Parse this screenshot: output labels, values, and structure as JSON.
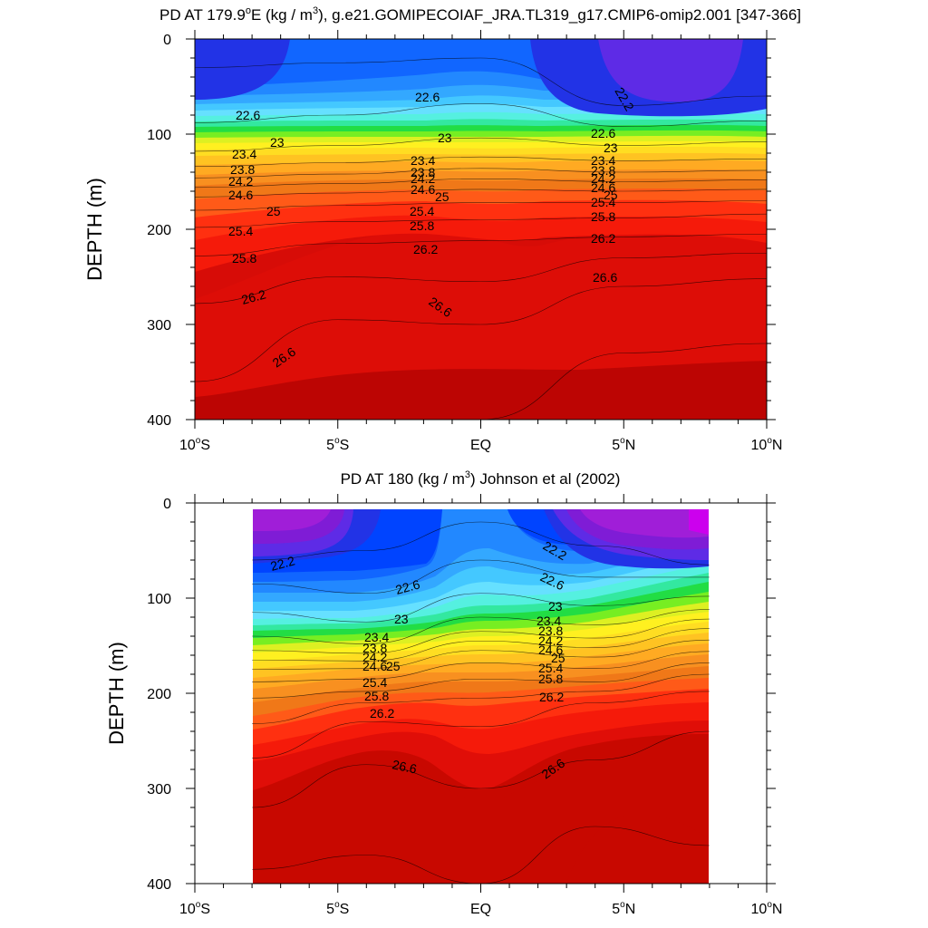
{
  "chart_data": [
    {
      "type": "contour",
      "title_pre": "PD AT 179.9",
      "title_deg": "o",
      "title_mid": "E (kg / m",
      "title_sup": "3",
      "title_post": "), g.e21.GOMIPECOIAF_JRA.TL319_g17.CMIP6-omip2.001 [347-366]",
      "ylabel": "DEPTH (m)",
      "xlim": [
        -10,
        10
      ],
      "ylim": [
        400,
        0
      ],
      "x_ticks": [
        {
          "value": -10,
          "main": "10",
          "deg": "o",
          "hem": "S"
        },
        {
          "value": -5,
          "main": "5",
          "deg": "o",
          "hem": "S"
        },
        {
          "value": 0,
          "main": "EQ",
          "deg": "",
          "hem": ""
        },
        {
          "value": 5,
          "main": "5",
          "deg": "o",
          "hem": "N"
        },
        {
          "value": 10,
          "main": "10",
          "deg": "o",
          "hem": "N"
        }
      ],
      "y_ticks": [
        {
          "value": 0,
          "label": "0"
        },
        {
          "value": 100,
          "label": "100"
        },
        {
          "value": 200,
          "label": "200"
        },
        {
          "value": 300,
          "label": "300"
        },
        {
          "value": 400,
          "label": "400"
        }
      ],
      "data_x_range": [
        -10,
        10
      ],
      "levels": [
        21.8,
        22.0,
        22.2,
        22.4,
        22.6,
        22.8,
        23.0,
        23.2,
        23.4,
        23.6,
        23.8,
        24.0,
        24.2,
        24.4,
        24.6,
        24.8,
        25.0,
        25.2,
        25.4,
        25.6,
        25.8,
        26.0,
        26.2,
        26.4,
        26.6,
        26.8
      ],
      "colors": [
        "#7F1CD6",
        "#5E2BE6",
        "#2233E6",
        "#0044FF",
        "#1166FF",
        "#2288FF",
        "#33A8FF",
        "#44C8FF",
        "#66E0FF",
        "#55F0E0",
        "#33E8A0",
        "#22DD44",
        "#77EE22",
        "#DDF022",
        "#FFF020",
        "#FFDD22",
        "#FFC322",
        "#FFAA22",
        "#F89020",
        "#F07818",
        "#FF5A18",
        "#FF3010",
        "#F51A0A",
        "#E00E08",
        "#C80800",
        "#A00000"
      ],
      "depth_profile": [
        {
          "x": -10,
          "isopycnals": [
            [
              22.2,
              30
            ],
            [
              22.6,
              88
            ],
            [
              23.0,
              118
            ],
            [
              23.4,
              134
            ],
            [
              23.8,
              146
            ],
            [
              24.2,
              156
            ],
            [
              24.6,
              166
            ],
            [
              25.0,
              180
            ],
            [
              25.4,
              198
            ],
            [
              25.8,
              228
            ],
            [
              26.2,
              278
            ],
            [
              26.6,
              360
            ],
            [
              26.8,
              420
            ]
          ]
        },
        {
          "x": -5,
          "isopycnals": [
            [
              22.2,
              25
            ],
            [
              22.6,
              80
            ],
            [
              23.0,
              112
            ],
            [
              23.4,
              130
            ],
            [
              23.8,
              142
            ],
            [
              24.2,
              152
            ],
            [
              24.6,
              162
            ],
            [
              25.0,
              175
            ],
            [
              25.4,
              192
            ],
            [
              25.8,
              215
            ],
            [
              26.2,
              250
            ],
            [
              26.6,
              295
            ],
            [
              26.8,
              400
            ]
          ]
        },
        {
          "x": 0,
          "isopycnals": [
            [
              22.2,
              20
            ],
            [
              22.6,
              68
            ],
            [
              23.0,
              104
            ],
            [
              23.4,
              124
            ],
            [
              23.8,
              136
            ],
            [
              24.2,
              147
            ],
            [
              24.6,
              158
            ],
            [
              25.0,
              172
            ],
            [
              25.4,
              190
            ],
            [
              25.8,
              212
            ],
            [
              26.2,
              255
            ],
            [
              26.6,
              300
            ],
            [
              26.8,
              400
            ]
          ]
        },
        {
          "x": 5,
          "isopycnals": [
            [
              22.2,
              70
            ],
            [
              22.6,
              92
            ],
            [
              23.0,
              112
            ],
            [
              23.4,
              128
            ],
            [
              23.8,
              140
            ],
            [
              24.2,
              150
            ],
            [
              24.6,
              160
            ],
            [
              25.0,
              172
            ],
            [
              25.4,
              188
            ],
            [
              25.8,
              208
            ],
            [
              26.2,
              230
            ],
            [
              26.6,
              260
            ],
            [
              26.8,
              330
            ]
          ]
        },
        {
          "x": 10,
          "isopycnals": [
            [
              22.2,
              60
            ],
            [
              22.6,
              86
            ],
            [
              23.0,
              108
            ],
            [
              23.4,
              126
            ],
            [
              23.8,
              138
            ],
            [
              24.2,
              148
            ],
            [
              24.6,
              158
            ],
            [
              25.0,
              170
            ],
            [
              25.4,
              184
            ],
            [
              25.8,
              205
            ],
            [
              26.2,
              225
            ],
            [
              26.6,
              252
            ],
            [
              26.8,
              320
            ]
          ]
        }
      ],
      "contour_labels": [
        "22.2",
        "22.6",
        "23",
        "23.4",
        "23.8",
        "24.2",
        "24.6",
        "25",
        "25.4",
        "25.8",
        "26.2",
        "26.6"
      ]
    },
    {
      "type": "contour",
      "title_pre": "PD AT 180 (kg / m",
      "title_sup": "3",
      "title_post": ") Johnson et al (2002)",
      "ylabel": "DEPTH (m)",
      "xlim": [
        -10,
        10
      ],
      "ylim": [
        400,
        0
      ],
      "x_ticks": [
        {
          "value": -10,
          "main": "10",
          "deg": "o",
          "hem": "S"
        },
        {
          "value": -5,
          "main": "5",
          "deg": "o",
          "hem": "S"
        },
        {
          "value": 0,
          "main": "EQ",
          "deg": "",
          "hem": ""
        },
        {
          "value": 5,
          "main": "5",
          "deg": "o",
          "hem": "N"
        },
        {
          "value": 10,
          "main": "10",
          "deg": "o",
          "hem": "N"
        }
      ],
      "y_ticks": [
        {
          "value": 0,
          "label": "0"
        },
        {
          "value": 100,
          "label": "100"
        },
        {
          "value": 200,
          "label": "200"
        },
        {
          "value": 300,
          "label": "300"
        },
        {
          "value": 400,
          "label": "400"
        }
      ],
      "data_x_range": [
        -8,
        8
      ],
      "levels": [
        21.6,
        21.8,
        22.0,
        22.2,
        22.4,
        22.6,
        22.8,
        23.0,
        23.2,
        23.4,
        23.6,
        23.8,
        24.0,
        24.2,
        24.4,
        24.6,
        24.8,
        25.0,
        25.2,
        25.4,
        25.6,
        25.8,
        26.0,
        26.2,
        26.4,
        26.6,
        26.8
      ],
      "colors": [
        "#CC00EE",
        "#A01ED8",
        "#7F1CD6",
        "#5E2BE6",
        "#2233E6",
        "#0044FF",
        "#1166FF",
        "#2288FF",
        "#33A8FF",
        "#44C8FF",
        "#66E0FF",
        "#55F0E0",
        "#33E8A0",
        "#22DD44",
        "#77EE22",
        "#DDF022",
        "#FFF020",
        "#FFDD22",
        "#FFC322",
        "#FFAA22",
        "#F89020",
        "#F07818",
        "#FF5A18",
        "#FF3010",
        "#F51A0A",
        "#E00E08",
        "#C80800"
      ],
      "depth_profile": [
        {
          "x": -8,
          "isopycnals": [
            [
              22.2,
              60
            ],
            [
              22.6,
              85
            ],
            [
              23.0,
              115
            ],
            [
              23.4,
              140
            ],
            [
              23.8,
              155
            ],
            [
              24.2,
              165
            ],
            [
              24.6,
              175
            ],
            [
              25.0,
              188
            ],
            [
              25.4,
              205
            ],
            [
              25.8,
              232
            ],
            [
              26.2,
              268
            ],
            [
              26.6,
              320
            ],
            [
              26.8,
              385
            ]
          ]
        },
        {
          "x": -4,
          "isopycnals": [
            [
              22.2,
              50
            ],
            [
              22.6,
              95
            ],
            [
              23.0,
              125
            ],
            [
              23.4,
              148
            ],
            [
              23.8,
              158
            ],
            [
              24.2,
              166
            ],
            [
              24.6,
              174
            ],
            [
              25.0,
              185
            ],
            [
              25.4,
              198
            ],
            [
              25.8,
              210
            ],
            [
              26.2,
              230
            ],
            [
              26.6,
              275
            ],
            [
              26.8,
              370
            ]
          ]
        },
        {
          "x": 0,
          "isopycnals": [
            [
              22.2,
              20
            ],
            [
              22.6,
              60
            ],
            [
              23.0,
              95
            ],
            [
              23.4,
              120
            ],
            [
              23.8,
              135
            ],
            [
              24.2,
              145
            ],
            [
              24.6,
              155
            ],
            [
              25.0,
              168
            ],
            [
              25.4,
              185
            ],
            [
              25.8,
              205
            ],
            [
              26.2,
              235
            ],
            [
              26.6,
              300
            ],
            [
              26.8,
              400
            ]
          ]
        },
        {
          "x": 4,
          "isopycnals": [
            [
              22.2,
              45
            ],
            [
              22.6,
              78
            ],
            [
              23.0,
              108
            ],
            [
              23.4,
              128
            ],
            [
              23.8,
              142
            ],
            [
              24.2,
              152
            ],
            [
              24.6,
              162
            ],
            [
              25.0,
              174
            ],
            [
              25.4,
              188
            ],
            [
              25.8,
              198
            ],
            [
              26.2,
              210
            ],
            [
              26.6,
              270
            ],
            [
              26.8,
              340
            ]
          ]
        },
        {
          "x": 8,
          "isopycnals": [
            [
              22.2,
              65
            ],
            [
              22.6,
              78
            ],
            [
              23.0,
              98
            ],
            [
              23.4,
              112
            ],
            [
              23.8,
              122
            ],
            [
              24.2,
              132
            ],
            [
              24.6,
              144
            ],
            [
              25.0,
              156
            ],
            [
              25.4,
              168
            ],
            [
              25.8,
              180
            ],
            [
              26.2,
              198
            ],
            [
              26.6,
              240
            ],
            [
              26.8,
              360
            ]
          ]
        }
      ],
      "contour_labels": [
        "22.2",
        "22.6",
        "23",
        "23.4",
        "23.8",
        "24.2",
        "24.6",
        "25",
        "25.4",
        "25.8",
        "26.2",
        "26.6"
      ]
    }
  ]
}
